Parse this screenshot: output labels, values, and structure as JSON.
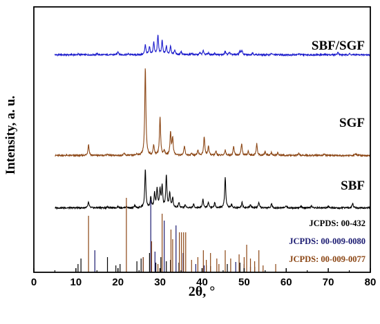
{
  "chart_data": {
    "type": "line",
    "xlabel": "2θ, °",
    "ylabel": "Intensity, a. u.",
    "xlim": [
      0,
      80
    ],
    "x_ticks": [
      "0",
      "10",
      "20",
      "30",
      "40",
      "50",
      "60",
      "70",
      "80"
    ],
    "grid": false,
    "series": [
      {
        "name": "SBF/SGF",
        "color": "#1c1ccc",
        "peaks": [
          [
            10.5,
            1
          ],
          [
            15,
            1.5
          ],
          [
            20,
            5
          ],
          [
            22.5,
            1.5
          ],
          [
            26.5,
            15
          ],
          [
            27.5,
            11
          ],
          [
            28.5,
            18
          ],
          [
            29.5,
            28
          ],
          [
            30.5,
            20
          ],
          [
            31.5,
            12
          ],
          [
            32.5,
            13
          ],
          [
            33.5,
            7
          ],
          [
            35,
            5
          ],
          [
            37.5,
            2.5
          ],
          [
            39.5,
            3
          ],
          [
            40.3,
            6
          ],
          [
            41.5,
            3
          ],
          [
            43,
            2.5
          ],
          [
            45.5,
            5
          ],
          [
            46.5,
            4
          ],
          [
            49,
            6
          ],
          [
            49.5,
            6
          ],
          [
            52,
            3
          ],
          [
            56.5,
            2
          ],
          [
            63,
            1.5
          ],
          [
            72.3,
            4
          ],
          [
            75,
            1.5
          ]
        ]
      },
      {
        "name": "SGF",
        "color": "#8b4513",
        "peaks": [
          [
            13,
            16
          ],
          [
            17.5,
            2
          ],
          [
            21.5,
            3
          ],
          [
            24.5,
            2
          ],
          [
            26.5,
            128
          ],
          [
            28.5,
            15
          ],
          [
            30,
            56
          ],
          [
            31,
            7
          ],
          [
            32.5,
            33
          ],
          [
            33,
            25
          ],
          [
            35.8,
            14
          ],
          [
            37.5,
            3
          ],
          [
            39,
            8
          ],
          [
            40.5,
            27
          ],
          [
            41.5,
            13
          ],
          [
            43.3,
            6
          ],
          [
            45.5,
            8
          ],
          [
            47.5,
            13
          ],
          [
            49.4,
            17
          ],
          [
            51,
            6
          ],
          [
            53,
            17
          ],
          [
            55,
            6
          ],
          [
            56.5,
            4
          ],
          [
            58,
            4
          ],
          [
            63,
            3
          ],
          [
            69,
            3
          ],
          [
            76.5,
            2
          ]
        ]
      },
      {
        "name": "SBF",
        "color": "#000000",
        "peaks": [
          [
            13,
            8
          ],
          [
            17.5,
            1.5
          ],
          [
            20,
            2
          ],
          [
            22,
            2
          ],
          [
            24,
            3
          ],
          [
            26.5,
            55
          ],
          [
            27.8,
            14
          ],
          [
            28.7,
            20
          ],
          [
            29.3,
            26
          ],
          [
            30,
            25
          ],
          [
            30.5,
            30
          ],
          [
            31.5,
            46
          ],
          [
            32.3,
            21
          ],
          [
            33,
            14
          ],
          [
            34.5,
            8
          ],
          [
            36,
            4
          ],
          [
            38,
            5
          ],
          [
            40.2,
            12
          ],
          [
            41.5,
            8
          ],
          [
            43,
            7
          ],
          [
            45.5,
            44
          ],
          [
            47,
            5
          ],
          [
            49.5,
            8
          ],
          [
            51.5,
            4
          ],
          [
            53.5,
            7
          ],
          [
            56.5,
            6
          ],
          [
            60,
            3
          ],
          [
            63.5,
            2
          ],
          [
            66,
            3
          ],
          [
            70,
            2
          ],
          [
            75.8,
            7
          ]
        ]
      }
    ],
    "reference_patterns": [
      {
        "name": "JCPDS: 00-432",
        "color": "#000000",
        "lines": [
          [
            10.5,
            12
          ],
          [
            11.2,
            20
          ],
          [
            17.5,
            22
          ],
          [
            19.5,
            10
          ],
          [
            20.5,
            12
          ],
          [
            24.5,
            16
          ],
          [
            25.5,
            20
          ],
          [
            27.5,
            28
          ],
          [
            29,
            14
          ],
          [
            30.2,
            22
          ],
          [
            31.5,
            16
          ],
          [
            32.5,
            18
          ],
          [
            34.5,
            14
          ],
          [
            41,
            10
          ],
          [
            42,
            9
          ],
          [
            46,
            12
          ],
          [
            49,
            14
          ],
          [
            52.5,
            8
          ]
        ]
      },
      {
        "name": "JCPDS: 00-009-0080",
        "color": "#191970",
        "lines": [
          [
            14.5,
            32
          ],
          [
            26,
            22
          ],
          [
            27.8,
            105
          ],
          [
            28.8,
            30
          ],
          [
            31,
            75
          ],
          [
            33.8,
            68
          ],
          [
            35.5,
            28
          ],
          [
            38.5,
            12
          ],
          [
            40.5,
            10
          ],
          [
            48,
            15
          ],
          [
            50,
            12
          ],
          [
            51.5,
            8
          ]
        ]
      },
      {
        "name": "JCPDS: 00-009-0077",
        "color": "#8b4513",
        "lines": [
          [
            13,
            82
          ],
          [
            22,
            108
          ],
          [
            26,
            22
          ],
          [
            28,
            45
          ],
          [
            29.5,
            12
          ],
          [
            30.5,
            85
          ],
          [
            32.6,
            62
          ],
          [
            33,
            48
          ],
          [
            34.6,
            58
          ],
          [
            35.1,
            58
          ],
          [
            35.6,
            58
          ],
          [
            36.1,
            58
          ],
          [
            37.5,
            18
          ],
          [
            39,
            22
          ],
          [
            40.3,
            32
          ],
          [
            41,
            18
          ],
          [
            42,
            28
          ],
          [
            43.5,
            20
          ],
          [
            44,
            12
          ],
          [
            45.5,
            32
          ],
          [
            46.8,
            20
          ],
          [
            48.8,
            26
          ],
          [
            50,
            22
          ],
          [
            50.6,
            40
          ],
          [
            51.5,
            20
          ],
          [
            52.5,
            16
          ],
          [
            53.5,
            32
          ],
          [
            54.5,
            10
          ],
          [
            57.5,
            12
          ]
        ]
      }
    ]
  }
}
